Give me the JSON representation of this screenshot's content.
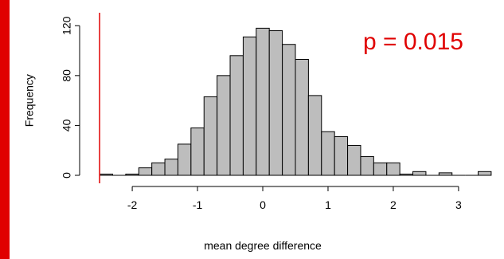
{
  "chart_data": {
    "type": "bar",
    "title": "",
    "xlabel": "mean degree difference",
    "ylabel": "Frequency",
    "annotation": "p = 0.015",
    "colors": {
      "bar_fill": "#bdbdbd",
      "bar_stroke": "#000000",
      "reference_line": "#e00000",
      "annotation": "#e00000",
      "left_edge": "#e00000"
    },
    "grid": false,
    "xlim": [
      -2.55,
      3.55
    ],
    "ylim": [
      0,
      124
    ],
    "x_ticks": [
      -2,
      -1,
      0,
      1,
      2,
      3
    ],
    "x_tick_labels": [
      "-2",
      "-1",
      "0",
      "1",
      "2",
      "3"
    ],
    "y_ticks": [
      0,
      40,
      80,
      120
    ],
    "y_tick_labels": [
      "0",
      "40",
      "80",
      "120"
    ],
    "reference_line_x": -2.5,
    "bin_width": 0.2,
    "bins": [
      {
        "start": -2.5,
        "end": -2.3,
        "count": 1
      },
      {
        "start": -2.3,
        "end": -2.1,
        "count": 0
      },
      {
        "start": -2.1,
        "end": -1.9,
        "count": 1
      },
      {
        "start": -1.9,
        "end": -1.7,
        "count": 6
      },
      {
        "start": -1.7,
        "end": -1.5,
        "count": 10
      },
      {
        "start": -1.5,
        "end": -1.3,
        "count": 13
      },
      {
        "start": -1.3,
        "end": -1.1,
        "count": 25
      },
      {
        "start": -1.1,
        "end": -0.9,
        "count": 38
      },
      {
        "start": -0.9,
        "end": -0.7,
        "count": 63
      },
      {
        "start": -0.7,
        "end": -0.5,
        "count": 80
      },
      {
        "start": -0.5,
        "end": -0.3,
        "count": 96
      },
      {
        "start": -0.3,
        "end": -0.1,
        "count": 111
      },
      {
        "start": -0.1,
        "end": 0.1,
        "count": 118
      },
      {
        "start": 0.1,
        "end": 0.3,
        "count": 116
      },
      {
        "start": 0.3,
        "end": 0.5,
        "count": 105
      },
      {
        "start": 0.5,
        "end": 0.7,
        "count": 93
      },
      {
        "start": 0.7,
        "end": 0.9,
        "count": 64
      },
      {
        "start": 0.9,
        "end": 1.1,
        "count": 35
      },
      {
        "start": 1.1,
        "end": 1.3,
        "count": 31
      },
      {
        "start": 1.3,
        "end": 1.5,
        "count": 24
      },
      {
        "start": 1.5,
        "end": 1.7,
        "count": 15
      },
      {
        "start": 1.7,
        "end": 1.9,
        "count": 10
      },
      {
        "start": 1.9,
        "end": 2.1,
        "count": 10
      },
      {
        "start": 2.1,
        "end": 2.3,
        "count": 1
      },
      {
        "start": 2.3,
        "end": 2.5,
        "count": 3
      },
      {
        "start": 2.5,
        "end": 2.7,
        "count": 0
      },
      {
        "start": 2.7,
        "end": 2.9,
        "count": 2
      },
      {
        "start": 2.9,
        "end": 3.1,
        "count": 0
      },
      {
        "start": 3.1,
        "end": 3.3,
        "count": 0
      },
      {
        "start": 3.3,
        "end": 3.5,
        "count": 3
      }
    ]
  }
}
